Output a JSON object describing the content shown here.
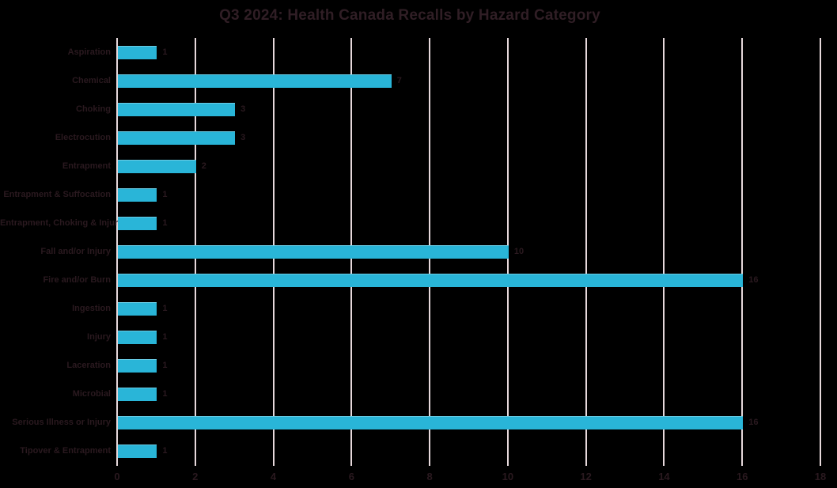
{
  "chart_data": {
    "type": "bar",
    "orientation": "horizontal",
    "title": "Q3 2024: Health Canada Recalls by Hazard Category",
    "categories": [
      "Aspiration",
      "Chemical",
      "Choking",
      "Electrocution",
      "Entrapment",
      "Entrapment & Suffocation",
      "Entrapment, Choking & Injury",
      "Fall and/or Injury",
      "Fire and/or Burn",
      "Ingestion",
      "Injury",
      "Laceration",
      "Microbial",
      "Serious Illness or Injury",
      "Tipover & Entrapment"
    ],
    "values": [
      1,
      7,
      3,
      3,
      2,
      1,
      1,
      10,
      16,
      1,
      1,
      1,
      1,
      16,
      1
    ],
    "data_labels": [
      1,
      7,
      3,
      3,
      2,
      1,
      1,
      10,
      16,
      1,
      1,
      1,
      1,
      16,
      1
    ],
    "xlabel": "",
    "ylabel": "",
    "xlim": [
      0,
      18
    ],
    "xticks": [
      0,
      2,
      4,
      6,
      8,
      10,
      12,
      14,
      16,
      18
    ],
    "grid": "vertical-only",
    "legend": "none",
    "colors": {
      "background": "#000000",
      "bar": "#29b5d8",
      "gridline": "#e6d8db",
      "title_text": "#301e25",
      "label_text": "#2a191f",
      "tick_text": "#2a191f"
    }
  }
}
